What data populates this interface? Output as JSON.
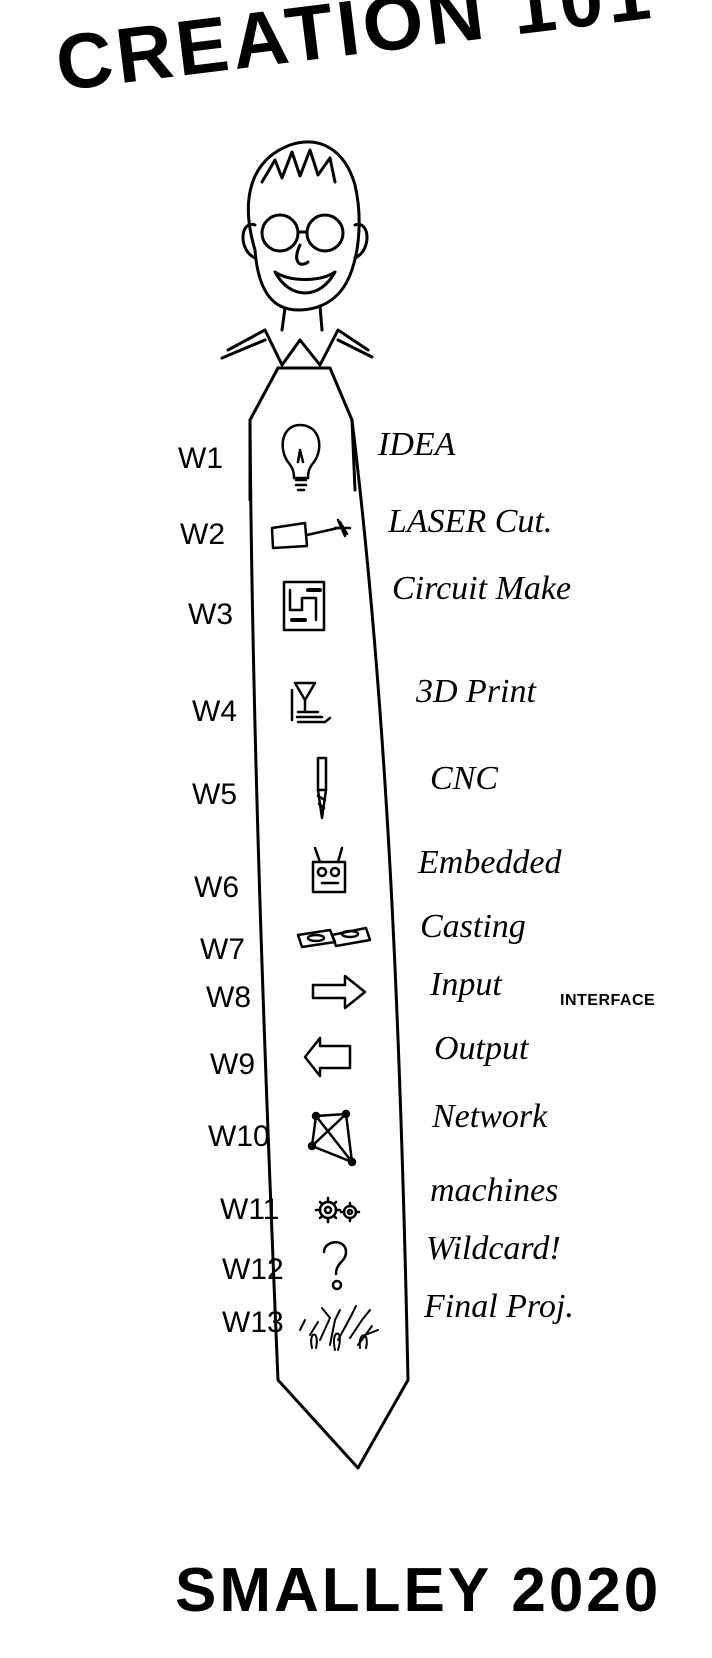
{
  "title": "CREATION 101",
  "footer": "SMALLEY 2020",
  "side_note": "INTERFACE",
  "weeks": [
    {
      "week": "W1",
      "topic": "IDEA",
      "icon": "lightbulb-icon"
    },
    {
      "week": "W2",
      "topic": "LASER Cut.",
      "icon": "laser-icon"
    },
    {
      "week": "W3",
      "topic": "Circuit Make",
      "icon": "circuit-board-icon"
    },
    {
      "week": "W4",
      "topic": "3D Print",
      "icon": "3d-printer-icon"
    },
    {
      "week": "W5",
      "topic": "CNC",
      "icon": "endmill-icon"
    },
    {
      "week": "W6",
      "topic": "Embedded",
      "icon": "robot-icon"
    },
    {
      "week": "W7",
      "topic": "Casting",
      "icon": "cast-blocks-icon"
    },
    {
      "week": "W8",
      "topic": "Input",
      "icon": "arrow-right-icon"
    },
    {
      "week": "W9",
      "topic": "Output",
      "icon": "arrow-left-icon"
    },
    {
      "week": "W10",
      "topic": "Network",
      "icon": "network-icon"
    },
    {
      "week": "W11",
      "topic": "machines",
      "icon": "gears-icon"
    },
    {
      "week": "W12",
      "topic": "Wildcard!",
      "icon": "question-mark-icon"
    },
    {
      "week": "W13",
      "topic": "Final Proj.",
      "icon": "fireworks-icon"
    }
  ]
}
